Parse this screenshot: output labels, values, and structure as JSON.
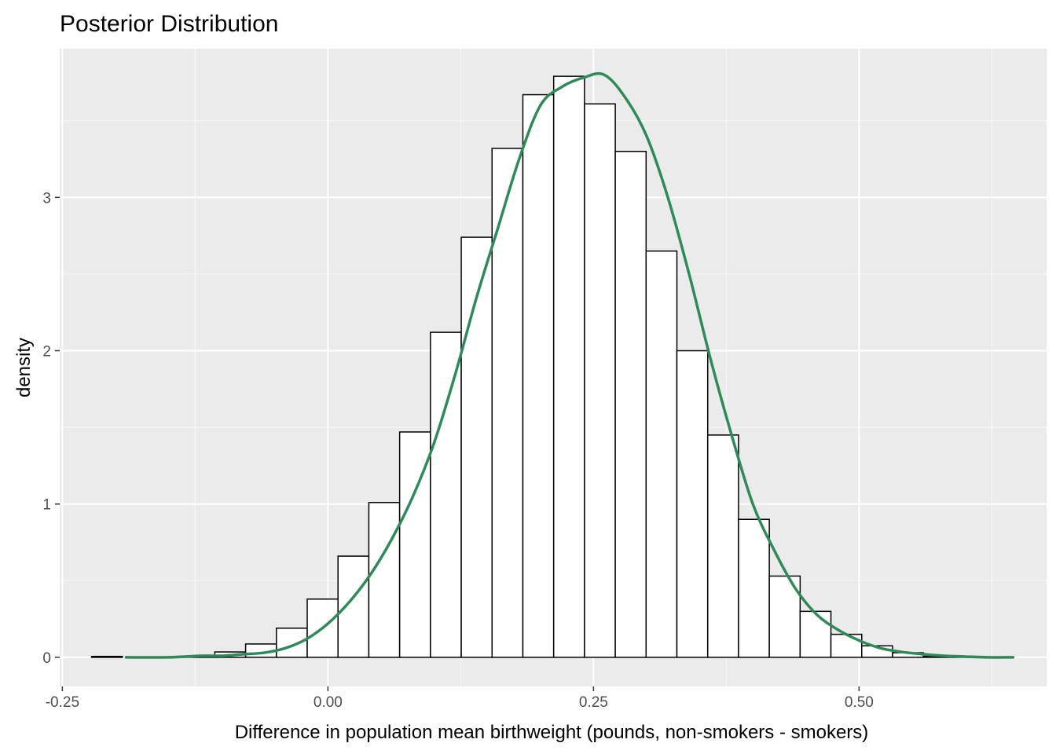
{
  "chart_data": {
    "type": "bar",
    "title": "Posterior Distribution",
    "xlabel": "Difference in population mean birthweight (pounds, non-smokers - smokers)",
    "ylabel": "density",
    "xlim": [
      -0.2525,
      0.6765
    ],
    "ylim": [
      -0.19,
      3.97
    ],
    "x_ticks": [
      {
        "value": -0.25,
        "label": "-0.25"
      },
      {
        "value": 0.0,
        "label": "0.00"
      },
      {
        "value": 0.25,
        "label": "0.25"
      },
      {
        "value": 0.5,
        "label": "0.50"
      }
    ],
    "y_ticks": [
      {
        "value": 0,
        "label": "0"
      },
      {
        "value": 1,
        "label": "1"
      },
      {
        "value": 2,
        "label": "2"
      },
      {
        "value": 3,
        "label": "3"
      }
    ],
    "histogram": {
      "name": "posterior samples",
      "bin_start": -0.2225,
      "bin_width": 0.029,
      "values": [
        0.006,
        0.0,
        0.003,
        0.006,
        0.035,
        0.087,
        0.19,
        0.38,
        0.66,
        1.01,
        1.47,
        2.12,
        2.74,
        3.32,
        3.67,
        3.79,
        3.61,
        3.3,
        2.65,
        2.0,
        1.45,
        0.9,
        0.53,
        0.3,
        0.15,
        0.075,
        0.03,
        0.006,
        0.006
      ],
      "fill": "#ffffff",
      "stroke": "#000000"
    },
    "density_curve": {
      "name": "posterior density",
      "color": "#2e8b57",
      "x": [
        -0.19,
        -0.15,
        -0.12,
        -0.1,
        -0.08,
        -0.06,
        -0.04,
        -0.02,
        0.0,
        0.02,
        0.04,
        0.06,
        0.08,
        0.1,
        0.12,
        0.14,
        0.16,
        0.18,
        0.2,
        0.22,
        0.24,
        0.26,
        0.28,
        0.3,
        0.32,
        0.34,
        0.36,
        0.38,
        0.4,
        0.42,
        0.44,
        0.46,
        0.48,
        0.5,
        0.52,
        0.54,
        0.56,
        0.58,
        0.6,
        0.62,
        0.645
      ],
      "y": [
        0.0,
        0.0,
        0.01,
        0.01,
        0.02,
        0.03,
        0.06,
        0.12,
        0.22,
        0.36,
        0.54,
        0.77,
        1.05,
        1.4,
        1.85,
        2.35,
        2.8,
        3.25,
        3.6,
        3.72,
        3.78,
        3.8,
        3.65,
        3.4,
        3.0,
        2.5,
        1.95,
        1.45,
        1.0,
        0.7,
        0.45,
        0.28,
        0.18,
        0.11,
        0.06,
        0.035,
        0.02,
        0.01,
        0.005,
        0.0,
        0.0
      ]
    },
    "panel_background": "#ebebeb",
    "grid": true,
    "legend": "none"
  }
}
